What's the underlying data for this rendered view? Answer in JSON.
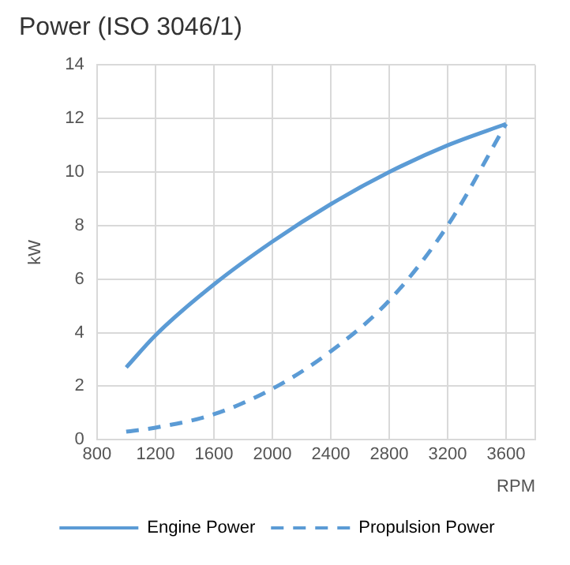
{
  "chart_data": {
    "type": "line",
    "title": "Power (ISO 3046/1)",
    "xlabel": "RPM",
    "ylabel": "kW",
    "x": [
      1000,
      1200,
      1600,
      2000,
      2400,
      2800,
      3200,
      3600
    ],
    "series": [
      {
        "name": "Engine Power",
        "color": "#5b9bd5",
        "line_style": "solid",
        "values": [
          2.7,
          3.9,
          5.8,
          7.4,
          8.8,
          10,
          11,
          11.8
        ]
      },
      {
        "name": "Propulsion Power",
        "color": "#5b9bd5",
        "line_style": "dashed",
        "values": [
          0.3,
          0.45,
          0.95,
          1.9,
          3.3,
          5.2,
          8,
          11.8
        ]
      }
    ],
    "xlim": [
      800,
      3800
    ],
    "xticks": [
      800,
      1200,
      1600,
      2000,
      2400,
      2800,
      3200,
      3600,
      {
        "value": 3800,
        "label": null
      }
    ],
    "ylim": [
      0,
      14
    ],
    "yticks": [
      0,
      2,
      4,
      6,
      8,
      10,
      12,
      14
    ],
    "grid": true,
    "legend": "bottom",
    "marker": "none"
  }
}
